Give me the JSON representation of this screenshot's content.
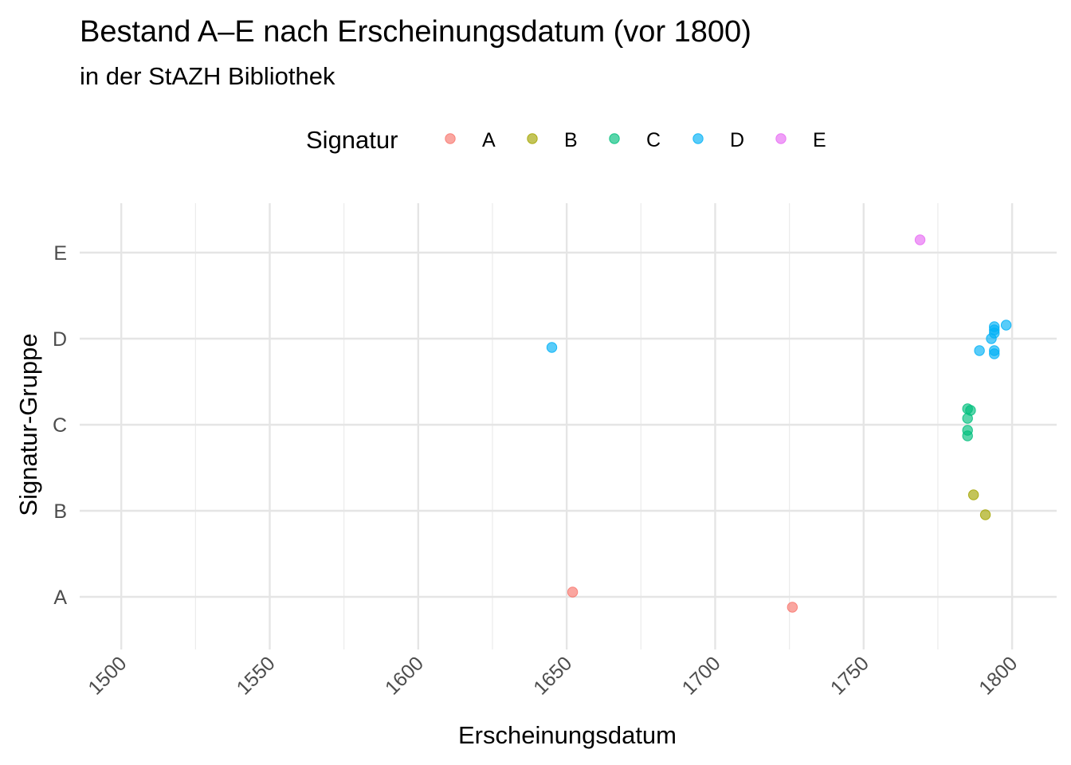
{
  "chart_data": {
    "type": "scatter",
    "title": "Bestand A–E nach Erscheinungsdatum (vor 1800)",
    "subtitle": "in der StAZH Bibliothek",
    "xlabel": "Erscheinungsdatum",
    "ylabel": "Signatur-Gruppe",
    "xlim": [
      1486,
      1815
    ],
    "x_ticks": [
      "1500",
      "1550",
      "1600",
      "1650",
      "1700",
      "1750",
      "1800"
    ],
    "y_categories": [
      "A",
      "B",
      "C",
      "D",
      "E"
    ],
    "grid": true,
    "legend": {
      "title": "Signatur",
      "position": "top",
      "entries": [
        "A",
        "B",
        "C",
        "D",
        "E"
      ]
    },
    "colors": {
      "A": "#F8766D",
      "B": "#A3A500",
      "C": "#00BF7D",
      "D": "#00B0F6",
      "E": "#E76BF3"
    },
    "series": [
      {
        "name": "A",
        "points": [
          {
            "x": 1652,
            "y": "A"
          },
          {
            "x": 1726,
            "y": "A"
          }
        ]
      },
      {
        "name": "B",
        "points": [
          {
            "x": 1787,
            "y": "B"
          },
          {
            "x": 1791,
            "y": "B"
          }
        ]
      },
      {
        "name": "C",
        "points": [
          {
            "x": 1785,
            "y": "C"
          },
          {
            "x": 1786,
            "y": "C"
          },
          {
            "x": 1785,
            "y": "C"
          },
          {
            "x": 1785,
            "y": "C"
          },
          {
            "x": 1785,
            "y": "C"
          }
        ]
      },
      {
        "name": "D",
        "points": [
          {
            "x": 1645,
            "y": "D"
          },
          {
            "x": 1789,
            "y": "D"
          },
          {
            "x": 1794,
            "y": "D"
          },
          {
            "x": 1794,
            "y": "D"
          },
          {
            "x": 1793,
            "y": "D"
          },
          {
            "x": 1794,
            "y": "D"
          },
          {
            "x": 1794,
            "y": "D"
          },
          {
            "x": 1794,
            "y": "D"
          },
          {
            "x": 1798,
            "y": "D"
          }
        ]
      },
      {
        "name": "E",
        "points": [
          {
            "x": 1769,
            "y": "E"
          }
        ]
      }
    ]
  }
}
